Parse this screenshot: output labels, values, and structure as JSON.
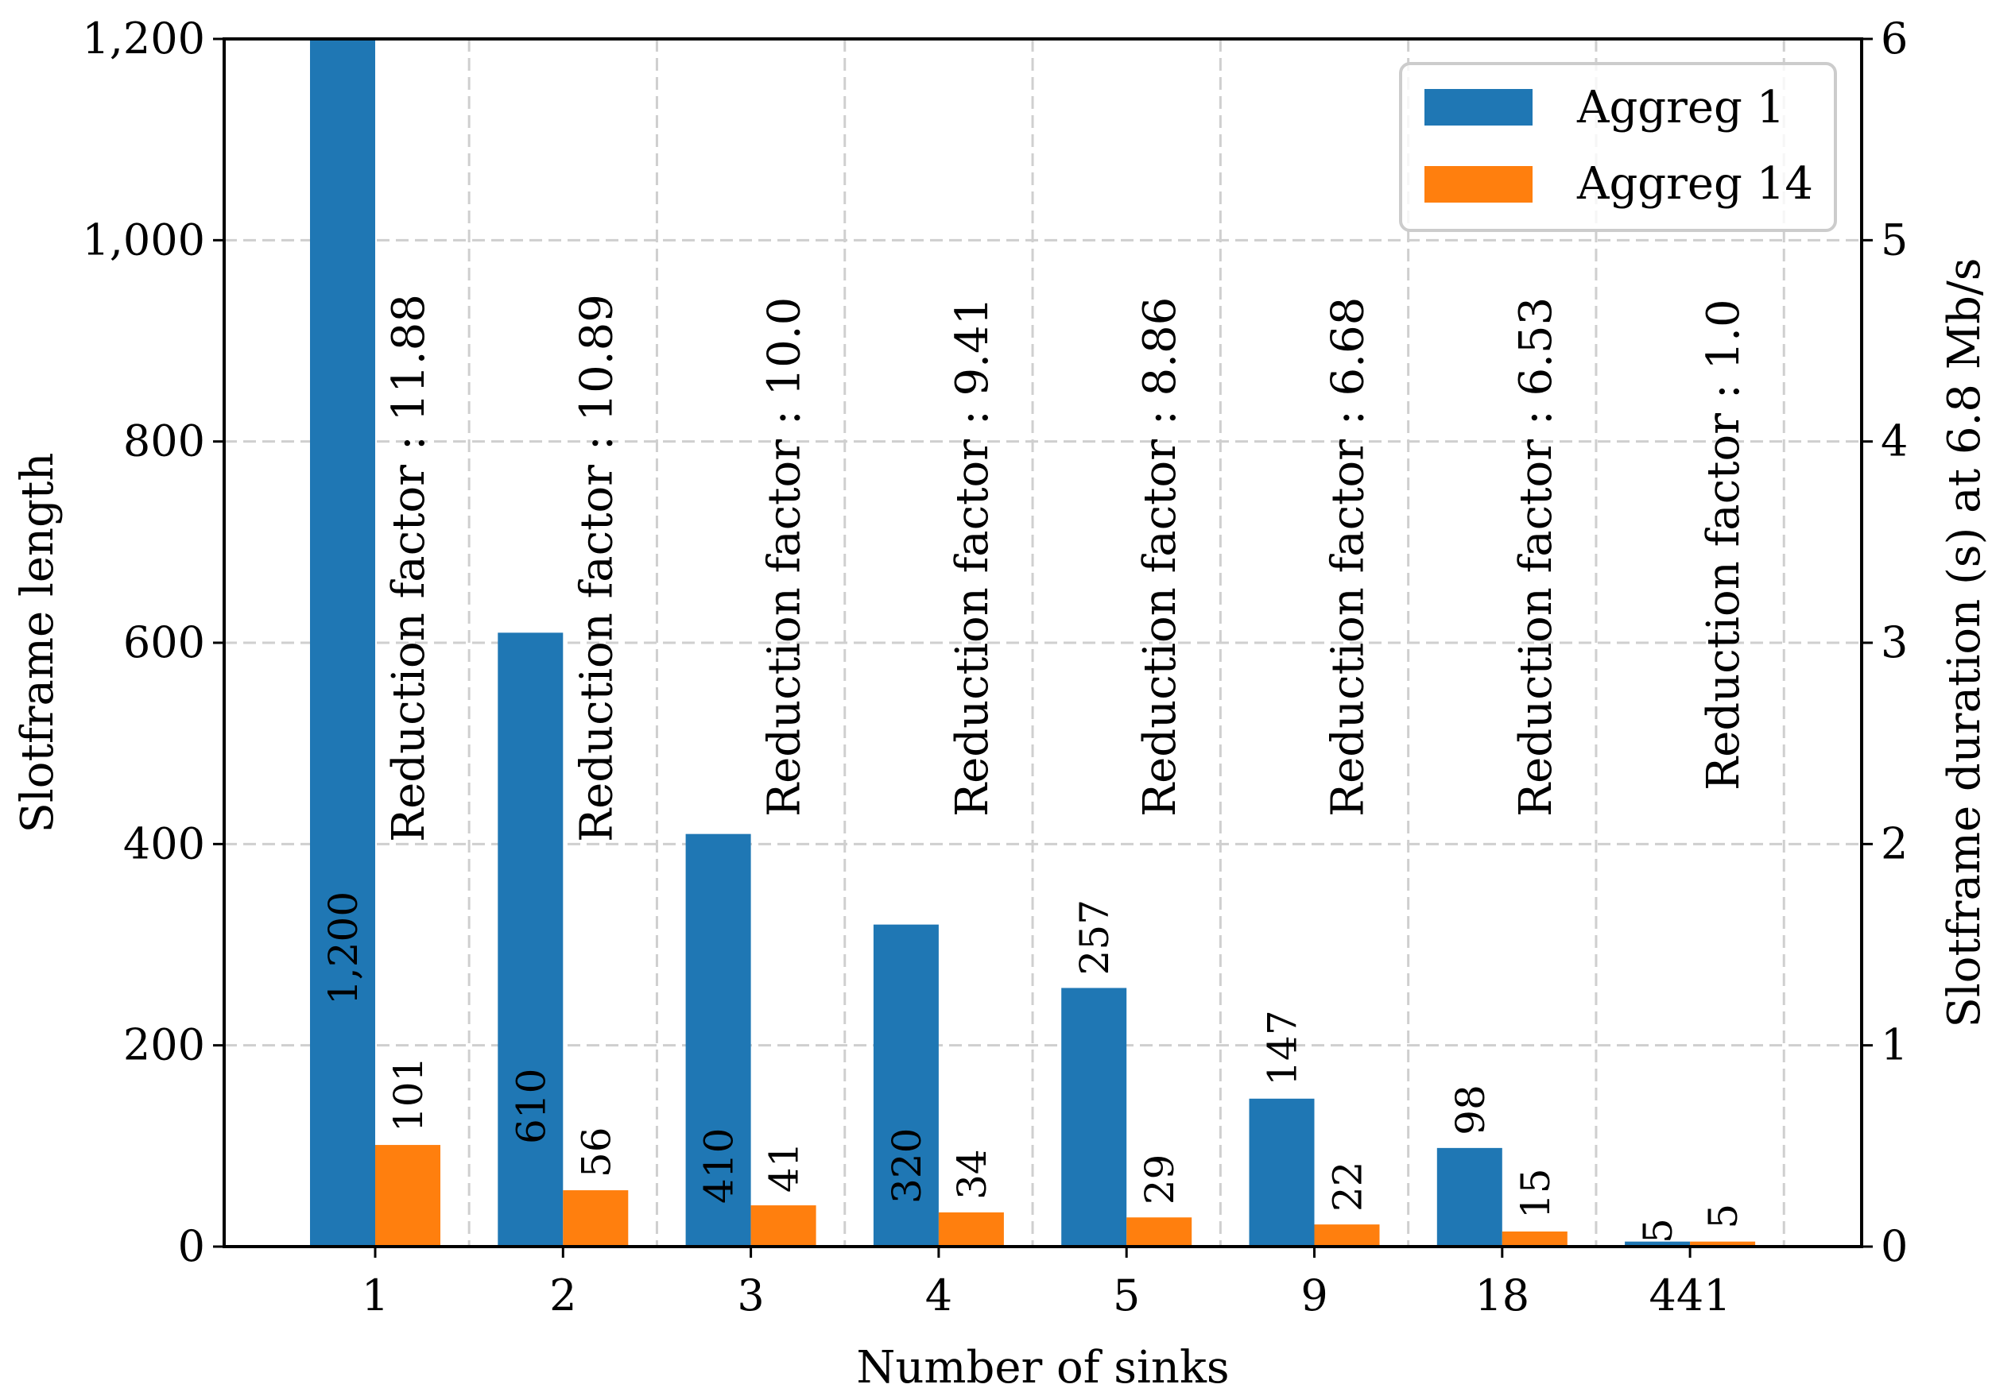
{
  "chart_data": {
    "type": "bar",
    "title": "",
    "xlabel": "Number of sinks",
    "ylabel": "Slotframe length",
    "y2label": "Slotframe duration (s) at 6.8 Mb/s",
    "categories": [
      "1",
      "2",
      "3",
      "4",
      "5",
      "9",
      "18",
      "441"
    ],
    "ylim": [
      0,
      1200
    ],
    "y2lim": [
      0,
      6
    ],
    "yticks": [
      0,
      200,
      400,
      600,
      800,
      1000,
      1200
    ],
    "ytick_labels": [
      "0",
      "200",
      "400",
      "600",
      "800",
      "1,000",
      "1,200"
    ],
    "y2ticks": [
      0,
      1,
      2,
      3,
      4,
      5,
      6
    ],
    "y2tick_labels": [
      "0",
      "1",
      "2",
      "3",
      "4",
      "5",
      "6"
    ],
    "grid": true,
    "legend_position": "top-right",
    "series": [
      {
        "name": "Aggreg 1",
        "color": "#1f77b4",
        "values": [
          1200,
          610,
          410,
          320,
          257,
          147,
          98,
          5
        ],
        "labels": [
          "1,200",
          "610",
          "410",
          "320",
          "257",
          "147",
          "98",
          "5"
        ]
      },
      {
        "name": "Aggreg 14",
        "color": "#ff7f0e",
        "values": [
          101,
          56,
          41,
          34,
          29,
          22,
          15,
          5
        ],
        "labels": [
          "101",
          "56",
          "41",
          "34",
          "29",
          "22",
          "15",
          "5"
        ]
      }
    ],
    "annotations": [
      "Reduction factor : 11.88",
      "Reduction factor : 10.89",
      "Reduction factor : 10.0",
      "Reduction factor : 9.41",
      "Reduction factor : 8.86",
      "Reduction factor : 6.68",
      "Reduction factor : 6.53",
      "Reduction factor : 1.0"
    ]
  }
}
